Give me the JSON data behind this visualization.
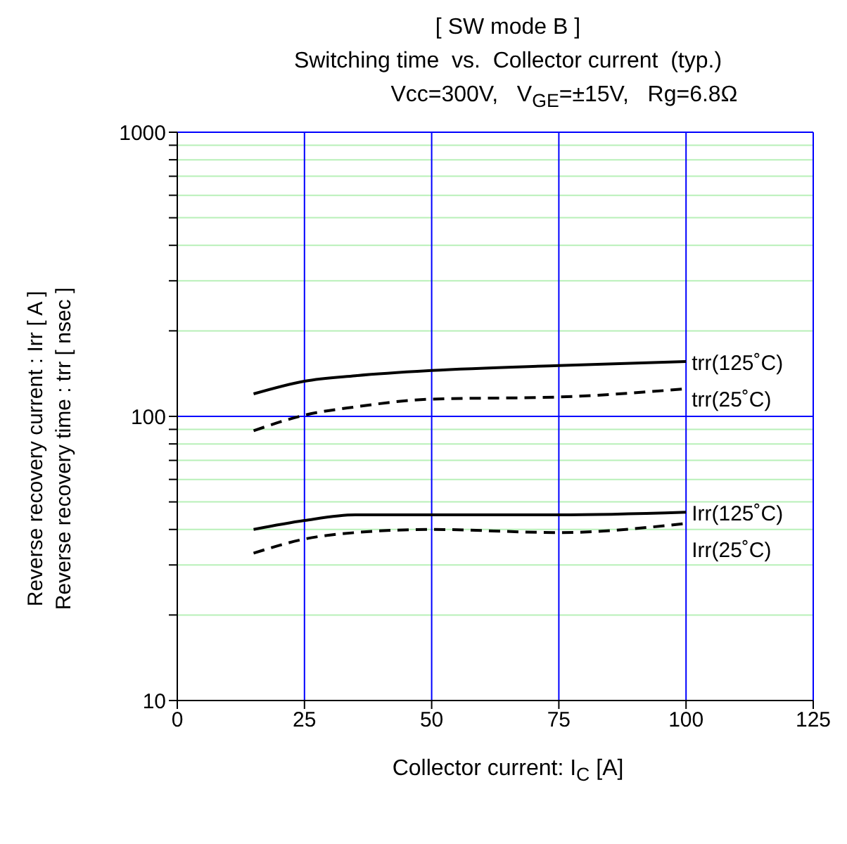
{
  "chart_data": {
    "type": "line",
    "title": "[ SW mode B ]",
    "subtitle": "Switching time  vs.  Collector current  (typ.)",
    "annotations": [
      "Vcc=300V,   V$_{GE}$=±15V,   Rg=6.8Ω"
    ],
    "xlabel": "Collector current: I$_{C}$ [A]",
    "ylabel": "Reverse recovery current  :  Irr  [ A ]\nReverse recovery time  :  trr  [ nsec ]",
    "log": "y",
    "grid": true,
    "marker": "none",
    "xlim": [
      0,
      125
    ],
    "xticks": [
      0,
      25,
      50,
      75,
      100,
      125
    ],
    "ylim": [
      10,
      1000
    ],
    "yticks": [
      10,
      {
        "value": 20,
        "label": null
      },
      {
        "value": 30,
        "label": null
      },
      {
        "value": 40,
        "label": null
      },
      {
        "value": 50,
        "label": null
      },
      {
        "value": 60,
        "label": null
      },
      {
        "value": 70,
        "label": null
      },
      {
        "value": 80,
        "label": null
      },
      {
        "value": 90,
        "label": null
      },
      100,
      {
        "value": 200,
        "label": null
      },
      {
        "value": 300,
        "label": null
      },
      {
        "value": 400,
        "label": null
      },
      {
        "value": 500,
        "label": null
      },
      {
        "value": 600,
        "label": null
      },
      {
        "value": 700,
        "label": null
      },
      {
        "value": 800,
        "label": null
      },
      {
        "value": 900,
        "label": null
      },
      1000
    ],
    "x": [
      15,
      25,
      35,
      50,
      75,
      100
    ],
    "series": [
      {
        "name": "trr(125˚C)",
        "color": "#000000",
        "line_style": "solid",
        "values": [
          120,
          133,
          139,
          145,
          151,
          156
        ]
      },
      {
        "name": "trr(25˚C)",
        "color": "#000000",
        "line_style": "dashed",
        "values": [
          89,
          101,
          108,
          115,
          117,
          125
        ]
      },
      {
        "name": "Irr(125˚C)",
        "color": "#000000",
        "line_style": "solid",
        "values": [
          40,
          43,
          45,
          45,
          45,
          46
        ]
      },
      {
        "name": "Irr(25˚C)",
        "color": "#000000",
        "line_style": "dashed",
        "values": [
          33,
          37,
          39,
          40,
          39,
          42
        ]
      }
    ]
  }
}
